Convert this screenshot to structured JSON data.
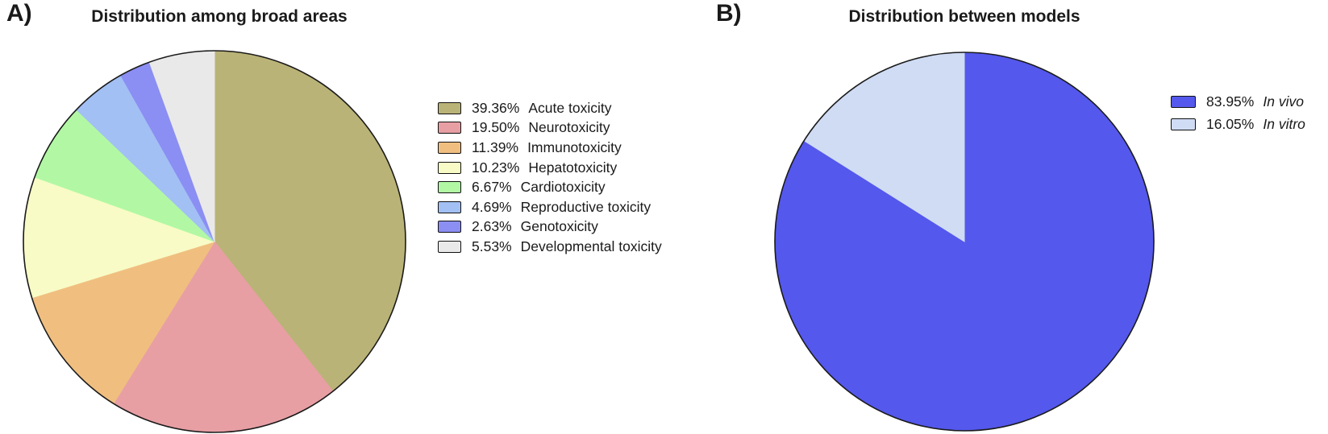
{
  "panels": [
    {
      "label": "A)"
    },
    {
      "label": "B)"
    }
  ],
  "chart_data": [
    {
      "type": "pie",
      "panel": "A",
      "title": "Distribution among broad areas",
      "start_angle_deg": -90,
      "direction": "clockwise",
      "legend_position": "right",
      "outline_color": "#1a1a1a",
      "slices": [
        {
          "label": "Acute toxicity",
          "pct": "39.36%",
          "value": 39.36,
          "color": "#bab377",
          "italic": false
        },
        {
          "label": "Neurotoxicity",
          "pct": "19.50%",
          "value": 19.5,
          "color": "#e79fa4",
          "italic": false
        },
        {
          "label": "Immunotoxicity",
          "pct": "11.39%",
          "value": 11.39,
          "color": "#f0bf80",
          "italic": false
        },
        {
          "label": "Hepatotoxicity",
          "pct": "10.23%",
          "value": 10.23,
          "color": "#f8fbc5",
          "italic": false
        },
        {
          "label": "Cardiotoxicity",
          "pct": "6.67%",
          "value": 6.67,
          "color": "#b2f8a4",
          "italic": false
        },
        {
          "label": "Reproductive toxicity",
          "pct": "4.69%",
          "value": 4.69,
          "color": "#a2c0f4",
          "italic": false
        },
        {
          "label": "Genotoxicity",
          "pct": "2.63%",
          "value": 2.63,
          "color": "#8b8ef2",
          "italic": false
        },
        {
          "label": "Developmental toxicity",
          "pct": "5.53%",
          "value": 5.53,
          "color": "#e9e9e9",
          "italic": false
        }
      ]
    },
    {
      "type": "pie",
      "panel": "B",
      "title": "Distribution between models",
      "start_angle_deg": -90,
      "direction": "clockwise",
      "legend_position": "right",
      "outline_color": "#1a1a1a",
      "slices": [
        {
          "label": "In vivo",
          "pct": "83.95%",
          "value": 83.95,
          "color": "#5458ec",
          "italic": true
        },
        {
          "label": "In vitro",
          "pct": "16.05%",
          "value": 16.05,
          "color": "#cfdcf4",
          "italic": true
        }
      ]
    }
  ]
}
